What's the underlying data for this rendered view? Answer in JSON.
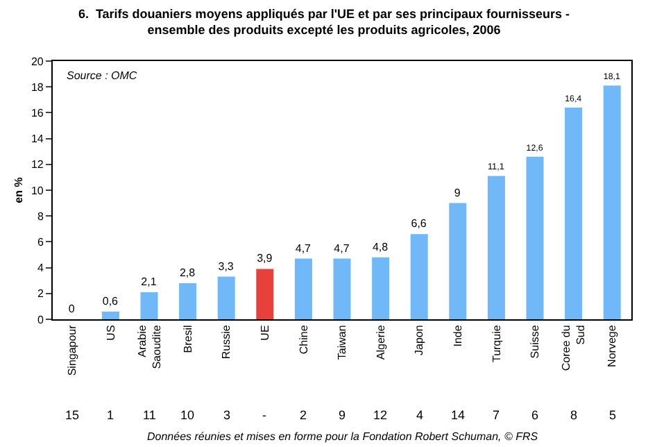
{
  "chart_data": {
    "type": "bar",
    "title": "6.  Tarifs douaniers moyens appliqués par l'UE et par ses principaux fournisseurs - ensemble des produits excepté les produits agricoles, 2006",
    "ylabel": "en %",
    "categories": [
      "Singapour",
      "US",
      "Arabie Saoudite",
      "Bresil",
      "Russie",
      "UE",
      "Chine",
      "Taiwan",
      "Algerie",
      "Japon",
      "Inde",
      "Turquie",
      "Suisse",
      "Coree du Sud",
      "Norvege"
    ],
    "values": [
      0,
      0.6,
      2.1,
      2.8,
      3.3,
      3.9,
      4.7,
      4.7,
      4.8,
      6.6,
      9,
      11.1,
      12.6,
      16.4,
      18.1
    ],
    "value_labels": [
      "0",
      "0,6",
      "2,1",
      "2,8",
      "3,3",
      "3,9",
      "4,7",
      "4,7",
      "4,8",
      "6,6",
      "9",
      "11,1",
      "12,6",
      "16,4",
      "18,1"
    ],
    "colors": [
      "#70b8f8",
      "#70b8f8",
      "#70b8f8",
      "#70b8f8",
      "#70b8f8",
      "#e8403a",
      "#70b8f8",
      "#70b8f8",
      "#70b8f8",
      "#70b8f8",
      "#70b8f8",
      "#70b8f8",
      "#70b8f8",
      "#70b8f8",
      "#70b8f8"
    ],
    "ylim": [
      0,
      20
    ],
    "yticks": [
      0,
      2,
      4,
      6,
      8,
      10,
      12,
      14,
      16,
      18,
      20
    ],
    "annotations": [
      "Source : OMC",
      "Données réunies et mises en forme pour la Fondation Robert Schuman, © FRS",
      "15",
      "1",
      "11",
      "10",
      "3",
      "-",
      "2",
      "9",
      "12",
      "4",
      "14",
      "7",
      "6",
      "8",
      "5"
    ]
  }
}
